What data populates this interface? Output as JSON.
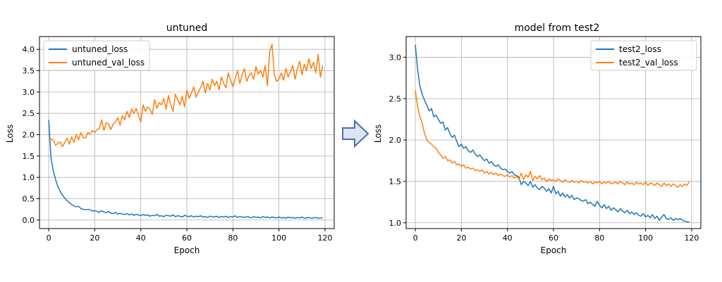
{
  "chart_data": [
    {
      "type": "line",
      "title": "untuned",
      "xlabel": "Epoch",
      "ylabel": "Loss",
      "xlim": [
        -4,
        124
      ],
      "ylim": [
        -0.2,
        4.3
      ],
      "xticks": [
        0,
        20,
        40,
        60,
        80,
        100,
        120
      ],
      "yticks": [
        0.0,
        0.5,
        1.0,
        1.5,
        2.0,
        2.5,
        3.0,
        3.5,
        4.0
      ],
      "ytick_labels": [
        "0.0",
        "0.5",
        "1.0",
        "1.5",
        "2.0",
        "2.5",
        "3.0",
        "3.5",
        "4.0"
      ],
      "grid": true,
      "legend_position": "top-left",
      "series": [
        {
          "name": "untuned_loss",
          "color": "#1f77b4",
          "values": [
            2.35,
            1.45,
            1.15,
            0.95,
            0.78,
            0.67,
            0.58,
            0.51,
            0.45,
            0.41,
            0.36,
            0.33,
            0.31,
            0.32,
            0.27,
            0.25,
            0.24,
            0.25,
            0.24,
            0.21,
            0.22,
            0.2,
            0.18,
            0.22,
            0.19,
            0.17,
            0.2,
            0.16,
            0.15,
            0.18,
            0.14,
            0.16,
            0.14,
            0.13,
            0.15,
            0.12,
            0.14,
            0.11,
            0.13,
            0.12,
            0.1,
            0.13,
            0.11,
            0.12,
            0.09,
            0.11,
            0.1,
            0.13,
            0.09,
            0.1,
            0.08,
            0.11,
            0.1,
            0.09,
            0.12,
            0.08,
            0.1,
            0.09,
            0.07,
            0.11,
            0.09,
            0.08,
            0.1,
            0.07,
            0.09,
            0.08,
            0.1,
            0.07,
            0.08,
            0.06,
            0.09,
            0.08,
            0.07,
            0.09,
            0.06,
            0.08,
            0.07,
            0.09,
            0.06,
            0.08,
            0.07,
            0.1,
            0.06,
            0.08,
            0.07,
            0.06,
            0.08,
            0.07,
            0.05,
            0.08,
            0.06,
            0.07,
            0.05,
            0.08,
            0.06,
            0.07,
            0.05,
            0.07,
            0.06,
            0.05,
            0.07,
            0.05,
            0.06,
            0.04,
            0.07,
            0.05,
            0.06,
            0.04,
            0.06,
            0.05,
            0.07,
            0.04,
            0.05,
            0.06,
            0.04,
            0.05,
            0.06,
            0.04,
            0.05,
            0.05
          ]
        },
        {
          "name": "untuned_val_loss",
          "color": "#ff7f0e",
          "values": [
            1.88,
            1.9,
            1.87,
            1.75,
            1.8,
            1.83,
            1.72,
            1.82,
            1.92,
            1.78,
            1.95,
            1.82,
            2.0,
            1.88,
            2.05,
            1.93,
            1.92,
            2.05,
            2.02,
            2.1,
            2.05,
            2.12,
            2.15,
            2.35,
            2.1,
            2.28,
            2.25,
            2.12,
            2.25,
            2.3,
            2.4,
            2.22,
            2.45,
            2.35,
            2.55,
            2.4,
            2.6,
            2.5,
            2.62,
            2.45,
            2.3,
            2.7,
            2.55,
            2.65,
            2.6,
            2.48,
            2.82,
            2.62,
            2.75,
            2.7,
            2.85,
            2.6,
            2.92,
            2.7,
            2.55,
            2.95,
            2.82,
            2.7,
            2.9,
            2.65,
            3.05,
            2.85,
            2.98,
            3.12,
            2.88,
            3.0,
            3.1,
            3.25,
            2.98,
            3.2,
            3.05,
            3.3,
            3.15,
            3.25,
            3.05,
            3.35,
            3.2,
            3.1,
            3.45,
            3.28,
            3.12,
            3.32,
            3.5,
            3.2,
            3.4,
            3.55,
            3.25,
            3.38,
            3.45,
            3.3,
            3.6,
            3.42,
            3.5,
            3.35,
            3.62,
            3.15,
            3.95,
            4.12,
            3.4,
            3.25,
            3.3,
            3.45,
            3.28,
            3.55,
            3.35,
            3.48,
            3.62,
            3.3,
            3.55,
            3.72,
            3.4,
            3.65,
            3.5,
            3.78,
            3.55,
            3.7,
            3.45,
            3.88,
            3.35,
            3.62
          ]
        }
      ]
    },
    {
      "type": "line",
      "title": "model from test2",
      "xlabel": "Epoch",
      "ylabel": "Loss",
      "xlim": [
        -4,
        124
      ],
      "ylim": [
        0.93,
        3.25
      ],
      "xticks": [
        0,
        20,
        40,
        60,
        80,
        100,
        120
      ],
      "yticks": [
        1.0,
        1.5,
        2.0,
        2.5,
        3.0
      ],
      "ytick_labels": [
        "1.0",
        "1.5",
        "2.0",
        "2.5",
        "3.0"
      ],
      "grid": true,
      "legend_position": "top-right",
      "series": [
        {
          "name": "test2_loss",
          "color": "#1f77b4",
          "values": [
            3.15,
            2.85,
            2.65,
            2.55,
            2.48,
            2.42,
            2.35,
            2.38,
            2.28,
            2.3,
            2.25,
            2.2,
            2.22,
            2.12,
            2.15,
            2.08,
            2.03,
            2.06,
            1.98,
            1.92,
            1.95,
            1.9,
            1.92,
            1.87,
            1.85,
            1.88,
            1.83,
            1.8,
            1.82,
            1.78,
            1.75,
            1.77,
            1.72,
            1.74,
            1.7,
            1.68,
            1.7,
            1.66,
            1.64,
            1.65,
            1.62,
            1.6,
            1.62,
            1.58,
            1.57,
            1.55,
            1.46,
            1.5,
            1.48,
            1.45,
            1.5,
            1.43,
            1.46,
            1.42,
            1.4,
            1.44,
            1.42,
            1.38,
            1.41,
            1.36,
            1.44,
            1.35,
            1.38,
            1.32,
            1.36,
            1.31,
            1.34,
            1.3,
            1.33,
            1.28,
            1.3,
            1.29,
            1.27,
            1.26,
            1.28,
            1.23,
            1.25,
            1.22,
            1.2,
            1.26,
            1.21,
            1.18,
            1.22,
            1.17,
            1.2,
            1.15,
            1.18,
            1.16,
            1.13,
            1.17,
            1.14,
            1.12,
            1.15,
            1.11,
            1.13,
            1.1,
            1.12,
            1.09,
            1.08,
            1.11,
            1.07,
            1.09,
            1.06,
            1.1,
            1.05,
            1.08,
            1.03,
            1.07,
            1.1,
            1.05,
            1.04,
            1.06,
            1.03,
            1.05,
            1.04,
            1.05,
            1.03,
            1.02,
            1.01,
            1.01
          ]
        },
        {
          "name": "test2_val_loss",
          "color": "#ff7f0e",
          "values": [
            2.6,
            2.4,
            2.28,
            2.2,
            2.08,
            2.0,
            1.97,
            1.95,
            1.92,
            1.9,
            1.85,
            1.82,
            1.78,
            1.8,
            1.75,
            1.76,
            1.72,
            1.74,
            1.7,
            1.71,
            1.68,
            1.7,
            1.66,
            1.67,
            1.65,
            1.66,
            1.63,
            1.64,
            1.62,
            1.64,
            1.6,
            1.62,
            1.59,
            1.61,
            1.58,
            1.6,
            1.57,
            1.59,
            1.57,
            1.56,
            1.58,
            1.55,
            1.57,
            1.54,
            1.56,
            1.53,
            1.6,
            1.52,
            1.58,
            1.55,
            1.62,
            1.51,
            1.56,
            1.53,
            1.57,
            1.52,
            1.54,
            1.5,
            1.53,
            1.51,
            1.52,
            1.5,
            1.53,
            1.51,
            1.49,
            1.52,
            1.5,
            1.49,
            1.51,
            1.49,
            1.5,
            1.48,
            1.51,
            1.49,
            1.5,
            1.48,
            1.5,
            1.47,
            1.49,
            1.48,
            1.5,
            1.47,
            1.49,
            1.48,
            1.5,
            1.47,
            1.48,
            1.49,
            1.47,
            1.5,
            1.48,
            1.46,
            1.49,
            1.47,
            1.48,
            1.46,
            1.49,
            1.47,
            1.48,
            1.46,
            1.49,
            1.45,
            1.48,
            1.47,
            1.45,
            1.48,
            1.46,
            1.44,
            1.48,
            1.45,
            1.47,
            1.44,
            1.47,
            1.45,
            1.43,
            1.46,
            1.44,
            1.47,
            1.45,
            1.5
          ]
        }
      ]
    }
  ],
  "arrow": {
    "name": "right-arrow-icon",
    "fill": "#dce6f2",
    "stroke": "#4f6ea8"
  }
}
